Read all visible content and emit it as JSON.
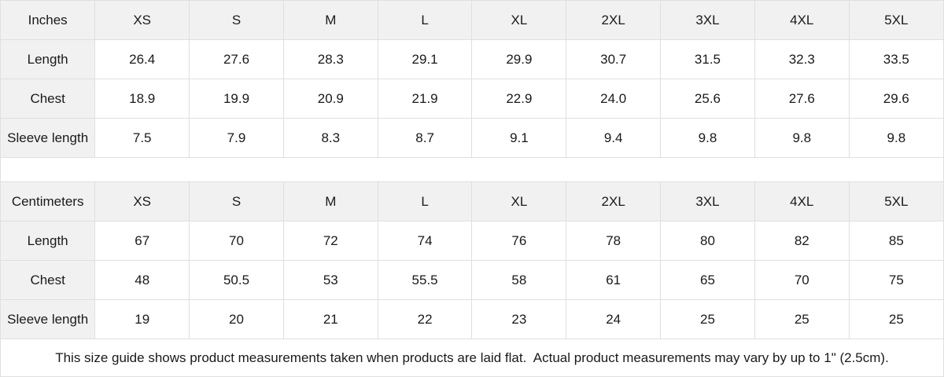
{
  "tables": [
    {
      "unit_label": "Inches",
      "sizes": [
        "XS",
        "S",
        "M",
        "L",
        "XL",
        "2XL",
        "3XL",
        "4XL",
        "5XL"
      ],
      "rows": [
        {
          "label": "Length",
          "values": [
            "26.4",
            "27.6",
            "28.3",
            "29.1",
            "29.9",
            "30.7",
            "31.5",
            "32.3",
            "33.5"
          ]
        },
        {
          "label": "Chest",
          "values": [
            "18.9",
            "19.9",
            "20.9",
            "21.9",
            "22.9",
            "24.0",
            "25.6",
            "27.6",
            "29.6"
          ]
        },
        {
          "label": "Sleeve length",
          "values": [
            "7.5",
            "7.9",
            "8.3",
            "8.7",
            "9.1",
            "9.4",
            "9.8",
            "9.8",
            "9.8"
          ]
        }
      ]
    },
    {
      "unit_label": "Centimeters",
      "sizes": [
        "XS",
        "S",
        "M",
        "L",
        "XL",
        "2XL",
        "3XL",
        "4XL",
        "5XL"
      ],
      "rows": [
        {
          "label": "Length",
          "values": [
            "67",
            "70",
            "72",
            "74",
            "76",
            "78",
            "80",
            "82",
            "85"
          ]
        },
        {
          "label": "Chest",
          "values": [
            "48",
            "50.5",
            "53",
            "55.5",
            "58",
            "61",
            "65",
            "70",
            "75"
          ]
        },
        {
          "label": "Sleeve length",
          "values": [
            "19",
            "20",
            "21",
            "22",
            "23",
            "24",
            "25",
            "25",
            "25"
          ]
        }
      ]
    }
  ],
  "footnote": "This size guide shows product measurements taken when products are laid flat.  Actual product measurements may vary by up to 1\" (2.5cm).",
  "colors": {
    "header_bg": "#f1f1f1",
    "cell_bg": "#ffffff",
    "border": "#dfdfdf",
    "text": "#1a1a1a"
  }
}
